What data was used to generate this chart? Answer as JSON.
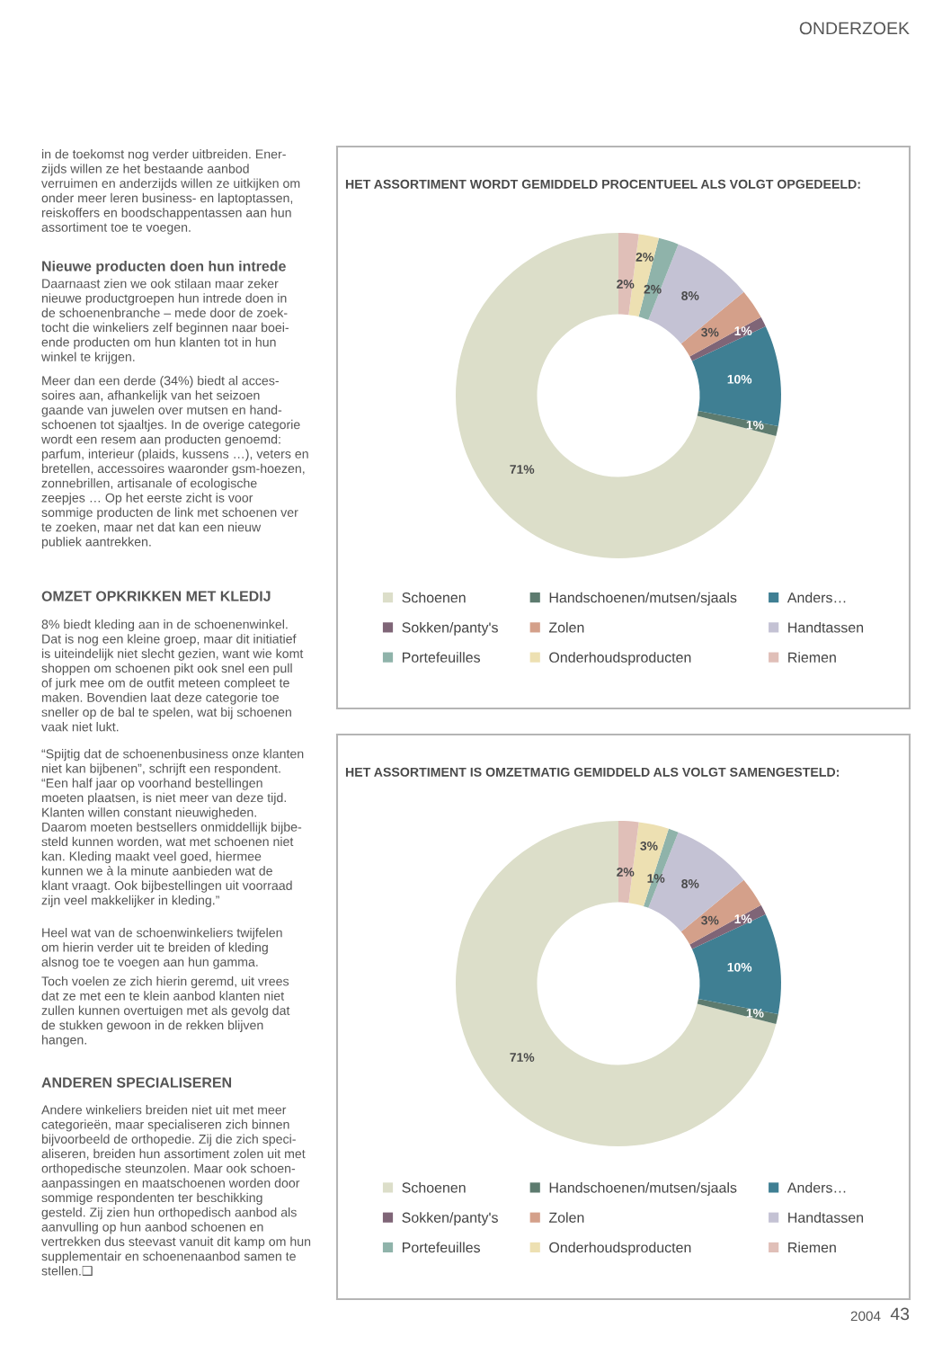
{
  "chart_data": [
    {
      "type": "other",
      "annotations": [
        "ONDERZOEK",
        "in de toekomst nog verder uitbreiden. Ener-\nzijds willen ze het bestaande aanbod\nverruimen en anderzijds willen ze uitkijken om\nonder meer leren business- en laptoptassen,\nreiskoffers en boodschappentassen aan hun\nassortiment toe te voegen.",
        "Nieuwe producten doen hun intrede",
        "Daarnaast zien we ook stilaan maar zeker\nnieuwe productgroepen hun intrede doen in\nde schoenenbranche – mede door de zoek-\ntocht die winkeliers zelf beginnen naar boei-\nende producten om hun klanten tot in hun\nwinkel te krijgen.",
        "Meer dan een derde (34%) biedt al acces-\nsoires aan, afhankelijk van het seizoen\ngaande van juwelen over mutsen en hand-\nschoenen tot sjaaltjes. In de overige categorie\nwordt een resem aan producten genoemd:\nparfum, interieur (plaids, kussens …), veters en\nbretellen, accessoires waaronder gsm-hoezen,\nzonnebrillen, artisanale of ecologische\nzeepjes … Op het eerste zicht is voor\nsommige producten de link met schoenen ver\nte zoeken, maar net dat kan een nieuw\npubliek aantrekken.",
        "OMZET OPKRIKKEN MET KLEDIJ",
        "8% biedt kleding aan in de schoenenwinkel.\nDat is nog een kleine groep, maar dit initiatief\nis uiteindelijk niet slecht gezien, want wie komt\nshoppen om schoenen pikt ook snel een pull\nof jurk mee om de outfit meteen compleet te\nmaken. Bovendien laat deze categorie toe\nsneller op de bal te spelen, wat bij schoenen\nvaak niet lukt.",
        "“Spijtig dat de schoenenbusiness onze klanten\nniet kan bijbenen”, schrijft een respondent.\n“Een half jaar op voorhand bestellingen\nmoeten plaatsen, is niet meer van deze tijd.\nKlanten willen constant nieuwigheden.\nDaarom moeten bestsellers onmiddellijk bijbe-\nsteld kunnen worden, wat met schoenen niet\nkan. Kleding maakt veel goed, hiermee\nkunnen we à la minute aanbieden wat de\nklant vraagt. Ook bijbestellingen uit voorraad\nzijn veel makkelijker in kleding.”",
        "Heel wat van de schoenwinkeliers twijfelen\nom hierin verder uit te breiden of kleding\nalsnog toe te voegen aan hun gamma.",
        "Toch voelen ze zich hierin geremd, uit vrees\ndat ze met een te klein aanbod klanten niet\nzullen kunnen overtuigen met als gevolg dat\nde stukken gewoon in de rekken blijven\nhangen.",
        "ANDEREN SPECIALISEREN",
        "Andere winkeliers breiden niet uit met meer\ncategorieën, maar specialiseren zich binnen\nbijvoorbeeld de orthopedie. Zij die zich speci-\naliseren, breiden hun assortiment zolen uit met\northopedische steunzolen. Maar ook schoen-\naanpassingen en maatschoenen worden door\nsommige respondenten ter beschikking\ngesteld. Zij zien hun orthopedisch aanbod als\naanvulling op hun aanbod schoenen en\nvertrekken dus steevast vanuit dit kamp om hun\nsupplementair en schoenenaanbod samen te\nstellen.❑",
        "2004",
        "43"
      ]
    },
    {
      "type": "donut",
      "title": "HET ASSORTIMENT WORDT GEMIDDELD PROCENTUEEL ALS VOLGT OPGEDEELD:",
      "categories": [
        "Schoenen",
        "Handschoenen/mutsen/sjaals",
        "Anders…",
        "Sokken/panty's",
        "Zolen",
        "Handtassen",
        "Portefeuilles",
        "Onderhoudsproducten",
        "Riemen"
      ],
      "values": [
        71,
        1,
        10,
        1,
        3,
        8,
        2,
        2,
        2
      ],
      "value_labels": [
        "71%",
        "1%",
        "10%",
        "1%",
        "3%",
        "8%",
        "2%",
        "2%",
        "2%"
      ],
      "colors": [
        "#dcdec9",
        "#5d7b6f",
        "#3f7f93",
        "#7f6577",
        "#d4a08a",
        "#c4c2d4",
        "#8fb3aa",
        "#ede0b2",
        "#e0bfb8"
      ],
      "legend": "bottom"
    },
    {
      "type": "donut",
      "title": "HET ASSORTIMENT IS OMZETMATIG GEMIDDELD ALS VOLGT SAMENGESTELD:",
      "categories": [
        "Schoenen",
        "Handschoenen/mutsen/sjaals",
        "Anders…",
        "Sokken/panty's",
        "Zolen",
        "Handtassen",
        "Portefeuilles",
        "Onderhoudsproducten",
        "Riemen"
      ],
      "values": [
        71,
        1,
        10,
        1,
        3,
        8,
        1,
        3,
        2
      ],
      "value_labels": [
        "71%",
        "1%",
        "10%",
        "1%",
        "3%",
        "8%",
        "1%",
        "3%",
        "2%"
      ],
      "colors": [
        "#dcdec9",
        "#5d7b6f",
        "#3f7f93",
        "#7f6577",
        "#d4a08a",
        "#c4c2d4",
        "#8fb3aa",
        "#ede0b2",
        "#e0bfb8"
      ],
      "legend": "bottom"
    }
  ]
}
